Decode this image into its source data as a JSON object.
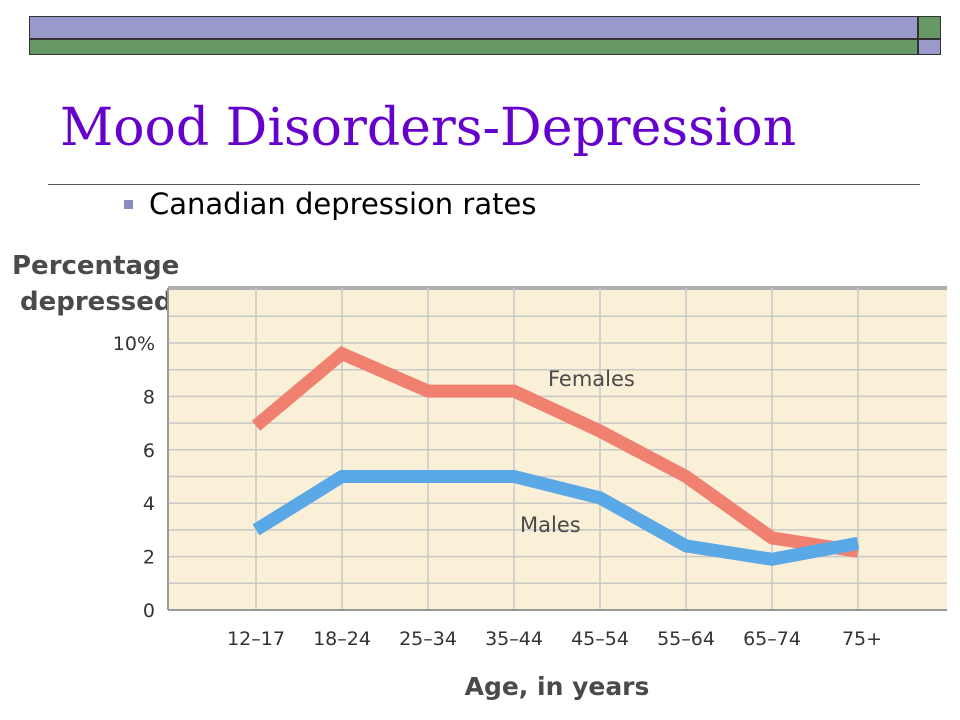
{
  "slide": {
    "title": "Mood Disorders-Depression",
    "bullet": "Canadian depression rates"
  },
  "colors": {
    "title": "#6600cc",
    "header_bar_purple": "#9999cc",
    "header_bar_green": "#669966",
    "plot_background": "#faf0d7",
    "grid": "#c8c8c8",
    "females_line": "#f08070",
    "males_line": "#5aa8e6"
  },
  "chart_data": {
    "type": "line",
    "title": "",
    "ylabel_line1": "Percentage",
    "ylabel_line2": "depressed",
    "xlabel": "Age, in years",
    "categories": [
      "12–17",
      "18–24",
      "25–34",
      "35–44",
      "45–54",
      "55–64",
      "65–74",
      "75+"
    ],
    "y_ticks": [
      "0",
      "2",
      "4",
      "6",
      "8",
      "10%"
    ],
    "ylim": [
      0,
      10
    ],
    "grid": true,
    "series": [
      {
        "name": "Females",
        "values": [
          6.9,
          9.6,
          8.2,
          8.2,
          6.7,
          5.0,
          2.7,
          2.2
        ]
      },
      {
        "name": "Males",
        "values": [
          3.0,
          5.0,
          5.0,
          5.0,
          4.2,
          2.4,
          1.9,
          2.5
        ]
      }
    ]
  }
}
